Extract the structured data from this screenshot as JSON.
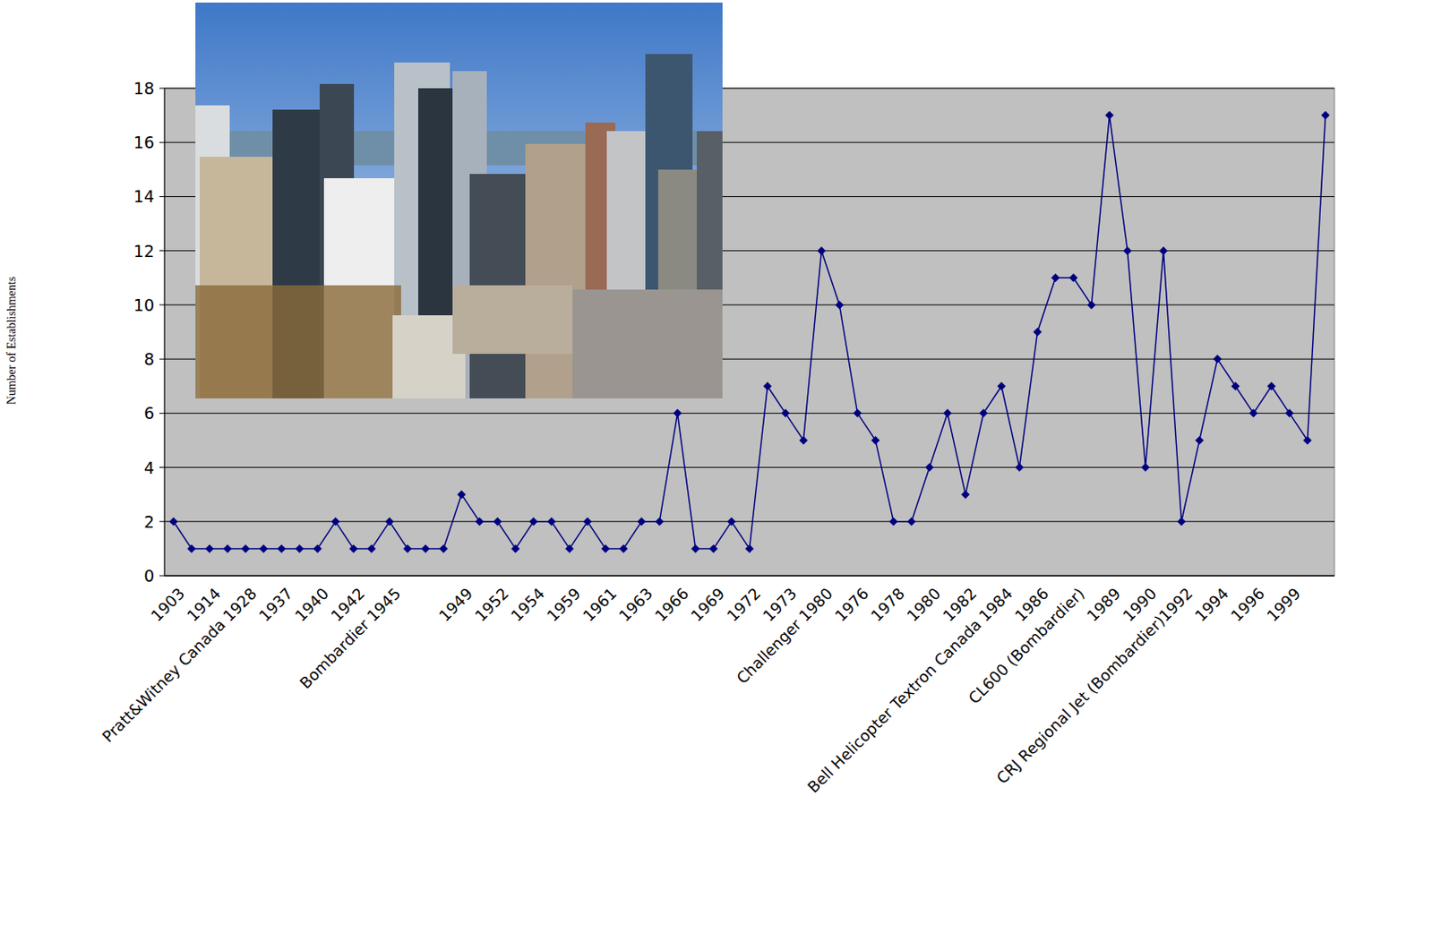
{
  "chart_data": {
    "type": "line",
    "y_label": "Number of Establishments",
    "categories": [
      "1903",
      null,
      "1914",
      null,
      "Pratt&Witney Canada 1928",
      null,
      "1937",
      null,
      "1940",
      null,
      "1942",
      null,
      "Bombardier 1945",
      null,
      null,
      null,
      "1949",
      null,
      "1952",
      null,
      "1954",
      null,
      "1959",
      null,
      "1961",
      null,
      "1963",
      null,
      "1966",
      null,
      "1969",
      null,
      "1972",
      null,
      "1973",
      null,
      "Challenger 1980",
      null,
      "1976",
      null,
      "1978",
      null,
      "1980",
      null,
      "1982",
      null,
      "Bell Helicopter Textron Canada 1984",
      null,
      "1986",
      null,
      "CL600 (Bombardier)",
      null,
      "1989",
      null,
      "1990",
      null,
      "CRJ Regional Jet (Bombardier)1992",
      null,
      "1994",
      null,
      "1996",
      null,
      "1999",
      null,
      null
    ],
    "values": [
      2,
      1,
      1,
      1,
      1,
      1,
      1,
      1,
      1,
      2,
      1,
      1,
      2,
      1,
      1,
      1,
      3,
      2,
      2,
      1,
      2,
      2,
      1,
      2,
      1,
      1,
      2,
      2,
      6,
      1,
      1,
      2,
      1,
      7,
      6,
      5,
      12,
      10,
      6,
      5,
      2,
      2,
      4,
      6,
      3,
      6,
      7,
      4,
      9,
      11,
      11,
      10,
      17,
      12,
      4,
      12,
      2,
      5,
      8,
      7,
      6,
      7,
      6,
      5,
      17
    ],
    "color": "#000080",
    "marker": "diamond",
    "ylim": [
      0,
      18
    ],
    "yticks": [
      0,
      2,
      4,
      6,
      8,
      10,
      12,
      14,
      16,
      18
    ],
    "grid": true
  }
}
